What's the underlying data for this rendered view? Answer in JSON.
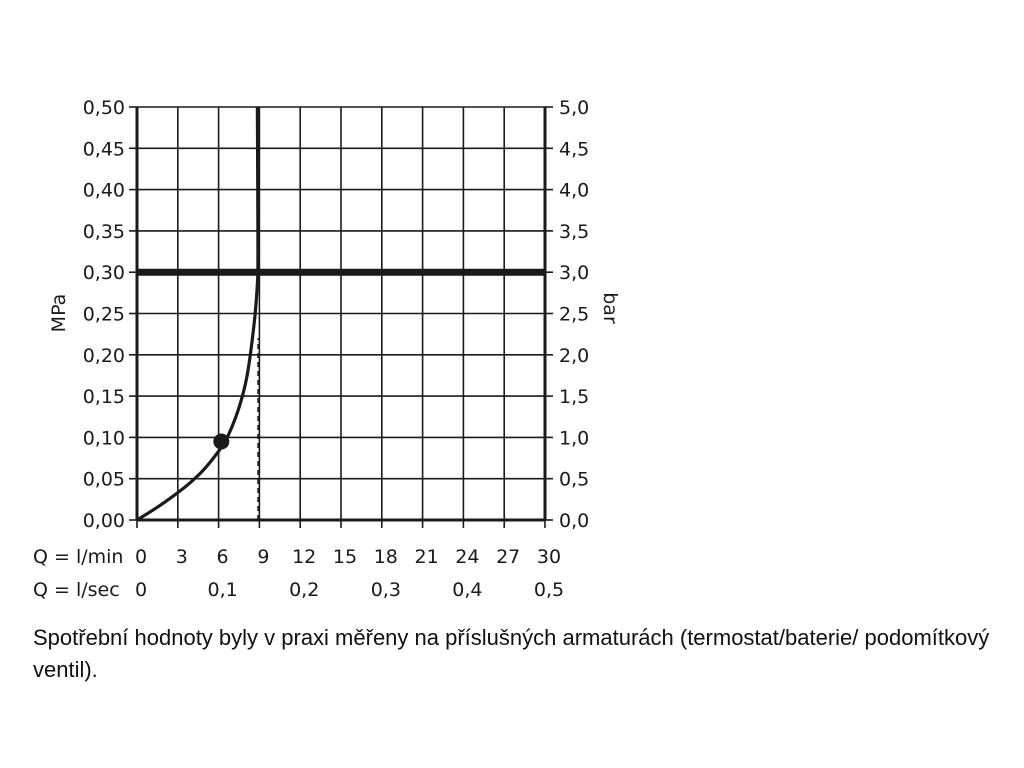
{
  "chart_data": {
    "type": "line",
    "x_axes": [
      {
        "label": "Q = l/min",
        "ticks": [
          "0",
          "3",
          "6",
          "9",
          "12",
          "15",
          "18",
          "21",
          "24",
          "27",
          "30"
        ]
      },
      {
        "label": "Q = l/sec",
        "ticks": [
          "0",
          "0,1",
          "0,2",
          "0,3",
          "0,4",
          "0,5"
        ]
      }
    ],
    "y_left": {
      "label": "MPa",
      "ticks": [
        "0,00",
        "0,05",
        "0,10",
        "0,15",
        "0,20",
        "0,25",
        "0,30",
        "0,35",
        "0,40",
        "0,45",
        "0,50"
      ]
    },
    "y_right": {
      "label": "bar",
      "ticks": [
        "0,0",
        "0,5",
        "1,0",
        "1,5",
        "2,0",
        "2,5",
        "3,0",
        "3,5",
        "4,0",
        "4,5",
        "5,0"
      ]
    },
    "xlim": [
      0,
      30
    ],
    "ylim": [
      0,
      0.5
    ],
    "grid": true,
    "series": [
      {
        "x": [
          0,
          1,
          2,
          3,
          4,
          5,
          6,
          6.5,
          7,
          7.5,
          8,
          8.3,
          8.6,
          8.75,
          8.85,
          8.9,
          8.88,
          8.85
        ],
        "y": [
          0,
          0.01,
          0.021,
          0.033,
          0.046,
          0.062,
          0.083,
          0.095,
          0.113,
          0.135,
          0.165,
          0.195,
          0.235,
          0.26,
          0.285,
          0.3,
          0.4,
          0.5
        ]
      }
    ],
    "marker_point": {
      "x": 6.2,
      "y": 0.095
    },
    "reference_line": {
      "y": 0.3
    },
    "drop_line": {
      "x": 8.9,
      "from_y": 0,
      "to_y": 0.22
    },
    "colors": {
      "curve": "#1a1a1a",
      "grid": "#1a1a1a",
      "reference": "#1a1a1a"
    }
  },
  "caption": {
    "text": "Spotřební hodnoty byly v praxi měřeny na příslušných armaturách (termostat/baterie/ podomítkový ventil)."
  }
}
